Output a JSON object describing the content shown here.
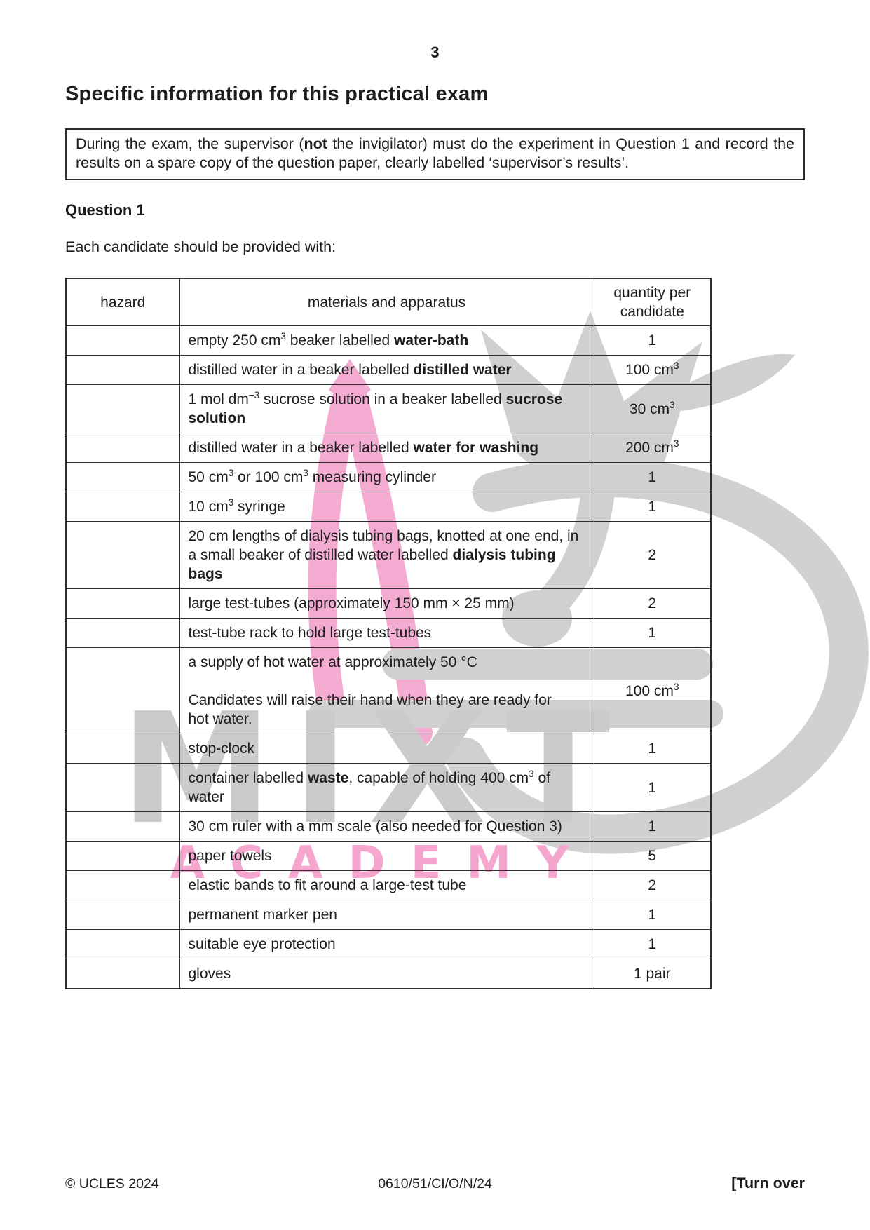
{
  "page_number": "3",
  "heading": "Specific information for this practical exam",
  "notice": {
    "pre": "During the exam, the supervisor (",
    "bold": "not",
    "post": " the invigilator) must do the experiment in Question 1 and record the results on a spare copy of the question paper, clearly labelled ‘supervisor’s results’."
  },
  "question_heading": "Question 1",
  "intro": "Each candidate should be provided with:",
  "table": {
    "headers": {
      "hazard": "hazard",
      "materials": "materials and apparatus",
      "quantity": "quantity per candidate"
    },
    "rows": [
      {
        "hazard": "",
        "m": [
          {
            "t": "empty 250 cm"
          },
          {
            "t": "3",
            "s": true
          },
          {
            "t": " beaker labelled "
          },
          {
            "t": "water-bath",
            "b": true
          }
        ],
        "q": [
          {
            "t": "1"
          }
        ]
      },
      {
        "hazard": "",
        "m": [
          {
            "t": "distilled water in a beaker labelled "
          },
          {
            "t": "distilled water",
            "b": true
          }
        ],
        "q": [
          {
            "t": "100 cm"
          },
          {
            "t": "3",
            "s": true
          }
        ]
      },
      {
        "hazard": "",
        "m": [
          {
            "t": "1 mol dm"
          },
          {
            "t": "−3",
            "s": true
          },
          {
            "t": " sucrose solution in a beaker labelled "
          },
          {
            "t": "sucrose solution",
            "b": true
          }
        ],
        "q": [
          {
            "t": "30 cm"
          },
          {
            "t": "3",
            "s": true
          }
        ]
      },
      {
        "hazard": "",
        "m": [
          {
            "t": "distilled water in a beaker labelled "
          },
          {
            "t": "water for washing",
            "b": true
          }
        ],
        "q": [
          {
            "t": "200 cm"
          },
          {
            "t": "3",
            "s": true
          }
        ]
      },
      {
        "hazard": "",
        "m": [
          {
            "t": "50 cm"
          },
          {
            "t": "3",
            "s": true
          },
          {
            "t": " or 100 cm"
          },
          {
            "t": "3",
            "s": true
          },
          {
            "t": " measuring cylinder"
          }
        ],
        "q": [
          {
            "t": "1"
          }
        ]
      },
      {
        "hazard": "",
        "m": [
          {
            "t": "10 cm"
          },
          {
            "t": "3",
            "s": true
          },
          {
            "t": " syringe"
          }
        ],
        "q": [
          {
            "t": "1"
          }
        ]
      },
      {
        "hazard": "",
        "m": [
          {
            "t": "20 cm lengths of dialysis tubing bags, knotted at one end, in a small beaker of distilled water labelled "
          },
          {
            "t": "dialysis tubing bags",
            "b": true
          }
        ],
        "q": [
          {
            "t": "2"
          }
        ]
      },
      {
        "hazard": "",
        "m": [
          {
            "t": "large test-tubes (approximately 150 mm × 25 mm)"
          }
        ],
        "q": [
          {
            "t": "2"
          }
        ]
      },
      {
        "hazard": "",
        "m": [
          {
            "t": "test-tube rack to hold large test-tubes"
          }
        ],
        "q": [
          {
            "t": "1"
          }
        ]
      },
      {
        "hazard": "",
        "m": [
          {
            "t": "a supply of hot water at approximately 50 °C"
          },
          {
            "br": 2
          },
          {
            "t": "Candidates will raise their hand when they are ready for"
          },
          {
            "br": 1
          },
          {
            "t": "hot water."
          }
        ],
        "q": [
          {
            "t": "100 cm"
          },
          {
            "t": "3",
            "s": true
          }
        ]
      },
      {
        "hazard": "",
        "m": [
          {
            "t": "stop-clock"
          }
        ],
        "q": [
          {
            "t": "1"
          }
        ]
      },
      {
        "hazard": "",
        "m": [
          {
            "t": "container labelled "
          },
          {
            "t": "waste",
            "b": true
          },
          {
            "t": ", capable of holding 400 cm"
          },
          {
            "t": "3",
            "s": true
          },
          {
            "t": " of water"
          }
        ],
        "q": [
          {
            "t": "1"
          }
        ]
      },
      {
        "hazard": "",
        "m": [
          {
            "t": "30 cm ruler with a mm scale (also needed for Question 3)"
          }
        ],
        "q": [
          {
            "t": "1"
          }
        ]
      },
      {
        "hazard": "",
        "m": [
          {
            "t": "paper towels"
          }
        ],
        "q": [
          {
            "t": "5"
          }
        ]
      },
      {
        "hazard": "",
        "m": [
          {
            "t": "elastic bands to fit around a large-test tube"
          }
        ],
        "q": [
          {
            "t": "2"
          }
        ]
      },
      {
        "hazard": "",
        "m": [
          {
            "t": "permanent marker pen"
          }
        ],
        "q": [
          {
            "t": "1"
          }
        ]
      },
      {
        "hazard": "",
        "m": [
          {
            "t": "suitable eye protection"
          }
        ],
        "q": [
          {
            "t": "1"
          }
        ]
      },
      {
        "hazard": "",
        "m": [
          {
            "t": "gloves"
          }
        ],
        "q": [
          {
            "t": "1 pair"
          }
        ]
      }
    ]
  },
  "watermark": {
    "line1": "MIXT",
    "line2": "ACADEMY",
    "gray": "#cccccc",
    "pink": "#f2a2cd"
  },
  "footer": {
    "copyright": "© UCLES 2024",
    "paper_code": "0610/51/CI/O/N/24",
    "turn_over": "[Turn over"
  }
}
